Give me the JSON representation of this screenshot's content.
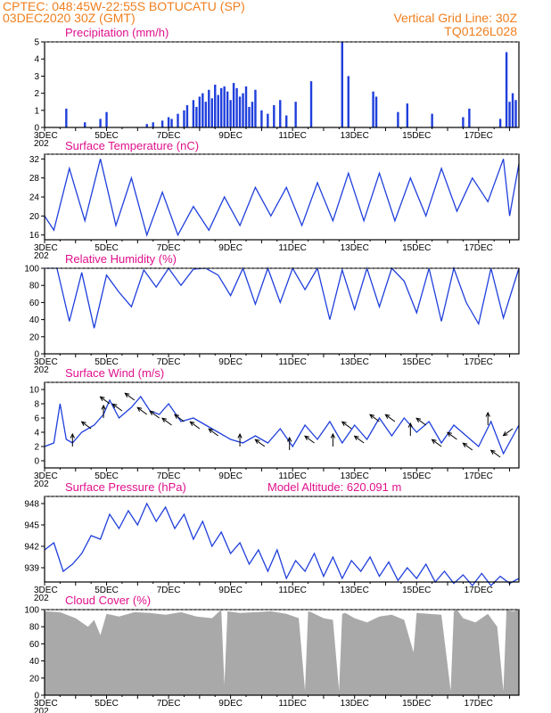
{
  "header": {
    "line1": "CPTEC:   048:45W-22:55S   BOTUCATU (SP)",
    "line2": "03DEC2020 30Z (GMT)",
    "grid_note": "Vertical Grid Line: 30Z",
    "model_code": "TQ0126L028"
  },
  "colors": {
    "header": "#f07f1e",
    "title": "#e0108c",
    "series": "#1f3fdc",
    "cloud": "#a9a9a9",
    "axis": "#000000"
  },
  "x_axis": {
    "start_day": 3,
    "end_day": 18.3,
    "ticks": [
      {
        "day": 3,
        "label": "3DEC"
      },
      {
        "day": 5,
        "label": "5DEC"
      },
      {
        "day": 7,
        "label": "7DEC"
      },
      {
        "day": 9,
        "label": "9DEC"
      },
      {
        "day": 11,
        "label": "11DEC"
      },
      {
        "day": 13,
        "label": "13DEC"
      },
      {
        "day": 15,
        "label": "15DEC"
      },
      {
        "day": 17,
        "label": "17DEC"
      }
    ],
    "year_fragment": "202"
  },
  "chart_data": [
    {
      "id": "precip",
      "type": "bar",
      "title": "Precipitation (mm/h)",
      "ylim": [
        0,
        5
      ],
      "yticks": [
        0,
        1,
        2,
        3,
        4,
        5
      ],
      "x": [
        3.7,
        4.3,
        4.8,
        5.0,
        6.3,
        6.5,
        6.8,
        7.0,
        7.1,
        7.3,
        7.5,
        7.6,
        7.8,
        7.9,
        8.0,
        8.1,
        8.2,
        8.3,
        8.4,
        8.5,
        8.6,
        8.7,
        8.8,
        8.9,
        9.0,
        9.1,
        9.2,
        9.3,
        9.4,
        9.5,
        9.6,
        9.7,
        9.8,
        10.0,
        10.2,
        10.4,
        10.6,
        10.8,
        11.1,
        11.6,
        12.6,
        12.8,
        13.6,
        13.7,
        14.4,
        14.7,
        15.5,
        16.5,
        16.7,
        17.7,
        17.9,
        18.0,
        18.1,
        18.2
      ],
      "values": [
        1.1,
        0.3,
        0.5,
        0.9,
        0.2,
        0.3,
        0.4,
        0.6,
        0.5,
        0.8,
        1.0,
        1.3,
        1.6,
        1.2,
        1.8,
        2.0,
        1.5,
        2.2,
        1.7,
        2.5,
        1.9,
        2.3,
        2.4,
        2.1,
        1.6,
        2.6,
        2.3,
        1.8,
        2.0,
        2.4,
        1.2,
        1.5,
        2.2,
        1.0,
        0.8,
        1.3,
        1.6,
        0.7,
        1.5,
        2.7,
        5.0,
        3.0,
        2.1,
        1.8,
        0.9,
        1.4,
        0.8,
        0.6,
        1.1,
        0.5,
        4.4,
        1.5,
        2.0,
        1.6
      ]
    },
    {
      "id": "temp",
      "type": "line",
      "title": "Surface Temperature (nC)",
      "ylim": [
        15,
        33
      ],
      "yticks": [
        16,
        20,
        24,
        28,
        32
      ],
      "x": [
        3.0,
        3.3,
        3.8,
        4.3,
        4.8,
        5.3,
        5.8,
        6.3,
        6.8,
        7.3,
        7.8,
        8.3,
        8.8,
        9.3,
        9.8,
        10.3,
        10.8,
        11.3,
        11.8,
        12.3,
        12.8,
        13.3,
        13.8,
        14.3,
        14.8,
        15.3,
        15.8,
        16.3,
        16.8,
        17.3,
        17.8,
        18.0,
        18.3
      ],
      "values": [
        20,
        17,
        30,
        19,
        32,
        18,
        28,
        16,
        25,
        16,
        22,
        17,
        24,
        18,
        26,
        20,
        26,
        18,
        27,
        19,
        29,
        19,
        29,
        19,
        28,
        20,
        30,
        21,
        28,
        23,
        32,
        20,
        31
      ]
    },
    {
      "id": "rh",
      "type": "line",
      "title": "Relative Humidity (%)",
      "ylim": [
        0,
        100
      ],
      "yticks": [
        0,
        20,
        40,
        60,
        80,
        100
      ],
      "x": [
        3.0,
        3.4,
        3.8,
        4.2,
        4.6,
        5.0,
        5.4,
        5.8,
        6.2,
        6.6,
        7.0,
        7.4,
        7.8,
        8.2,
        8.6,
        9.0,
        9.4,
        9.8,
        10.2,
        10.6,
        11.0,
        11.4,
        11.8,
        12.2,
        12.6,
        13.0,
        13.4,
        13.8,
        14.2,
        14.6,
        15.0,
        15.4,
        15.8,
        16.2,
        16.6,
        17.0,
        17.4,
        17.8,
        18.3
      ],
      "values": [
        100,
        100,
        38,
        95,
        30,
        92,
        72,
        55,
        98,
        78,
        100,
        80,
        99,
        100,
        92,
        68,
        100,
        58,
        100,
        60,
        100,
        75,
        100,
        40,
        98,
        52,
        100,
        55,
        100,
        85,
        48,
        100,
        38,
        100,
        60,
        35,
        100,
        42,
        100
      ]
    },
    {
      "id": "wind",
      "type": "line",
      "title": "Surface Wind (m/s)",
      "ylim": [
        -1,
        11
      ],
      "yticks": [
        0,
        2,
        4,
        6,
        8,
        10
      ],
      "x": [
        3.0,
        3.3,
        3.5,
        3.7,
        3.9,
        4.2,
        4.6,
        4.9,
        5.1,
        5.4,
        5.8,
        6.1,
        6.4,
        6.7,
        7.0,
        7.4,
        7.8,
        8.2,
        8.6,
        9.0,
        9.4,
        9.8,
        10.2,
        10.6,
        11.0,
        11.4,
        11.8,
        12.2,
        12.6,
        13.0,
        13.4,
        13.8,
        14.2,
        14.6,
        15.0,
        15.4,
        15.8,
        16.2,
        16.6,
        17.0,
        17.4,
        17.8,
        18.3
      ],
      "values": [
        2.0,
        2.5,
        8.0,
        3.0,
        2.5,
        4.0,
        5.0,
        6.5,
        8.5,
        6.0,
        7.5,
        9.0,
        7.0,
        6.5,
        8.0,
        5.5,
        6.0,
        5.0,
        4.0,
        3.0,
        2.5,
        3.5,
        2.5,
        4.5,
        2.0,
        5.0,
        3.0,
        5.5,
        2.5,
        5.0,
        3.0,
        6.0,
        3.5,
        6.0,
        4.0,
        5.5,
        2.5,
        5.0,
        3.5,
        2.0,
        5.5,
        1.0,
        5.0
      ],
      "arrows_x": [
        3.9,
        4.5,
        4.9,
        5.1,
        5.5,
        5.9,
        6.3,
        6.7,
        7.1,
        7.5,
        8.0,
        8.6,
        9.3,
        10.1,
        10.9,
        11.7,
        12.3,
        12.9,
        13.3,
        13.8,
        14.3,
        14.8,
        15.3,
        15.8,
        16.3,
        16.8,
        17.3,
        17.7,
        18.1
      ],
      "arrows_dir": [
        "n",
        "nw",
        "n",
        "nw",
        "nw",
        "nw",
        "nw",
        "nw",
        "nw",
        "nw",
        "nw",
        "nw",
        "n",
        "nw",
        "n",
        "nw",
        "n",
        "nw",
        "nw",
        "nw",
        "nw",
        "n",
        "nw",
        "nw",
        "nw",
        "nw",
        "n",
        "nw",
        "sw"
      ]
    },
    {
      "id": "pressure",
      "type": "line",
      "title": "Surface Pressure (hPa)",
      "annotation": "Model Altitude: 620.091  m",
      "ylim": [
        937,
        949
      ],
      "yticks": [
        939,
        942,
        945,
        948
      ],
      "x": [
        3.0,
        3.3,
        3.6,
        3.9,
        4.2,
        4.5,
        4.8,
        5.1,
        5.4,
        5.7,
        6.0,
        6.3,
        6.6,
        6.9,
        7.2,
        7.5,
        7.8,
        8.1,
        8.4,
        8.7,
        9.0,
        9.3,
        9.6,
        9.9,
        10.2,
        10.5,
        10.8,
        11.1,
        11.4,
        11.7,
        12.0,
        12.3,
        12.6,
        12.9,
        13.2,
        13.5,
        13.8,
        14.1,
        14.4,
        14.7,
        15.0,
        15.3,
        15.6,
        15.9,
        16.2,
        16.5,
        16.8,
        17.1,
        17.4,
        17.7,
        18.0,
        18.3
      ],
      "values": [
        941.5,
        942.5,
        938.5,
        939.5,
        941.0,
        943.5,
        943.0,
        946.5,
        944.5,
        947.0,
        945.0,
        948.0,
        945.5,
        947.5,
        944.5,
        946.5,
        943.0,
        945.5,
        942.0,
        944.0,
        941.0,
        942.5,
        939.5,
        941.5,
        938.5,
        941.5,
        937.5,
        940.0,
        938.5,
        941.0,
        937.8,
        940.5,
        937.5,
        940.0,
        938.5,
        940.5,
        937.8,
        939.8,
        937.2,
        939.0,
        937.5,
        939.5,
        937.0,
        938.5,
        936.8,
        938.0,
        936.5,
        938.2,
        936.5,
        937.8,
        936.8,
        937.5
      ]
    },
    {
      "id": "cloud",
      "type": "area",
      "title": "Cloud Cover (%)",
      "ylim": [
        0,
        100
      ],
      "yticks": [
        0,
        20,
        40,
        60,
        80,
        100
      ],
      "x": [
        3.0,
        3.5,
        4.0,
        4.4,
        4.6,
        4.8,
        5.0,
        5.4,
        5.9,
        6.4,
        6.9,
        7.4,
        7.9,
        8.4,
        8.7,
        8.8,
        8.9,
        9.3,
        9.8,
        10.3,
        10.8,
        11.2,
        11.4,
        11.5,
        11.6,
        12.0,
        12.3,
        12.5,
        12.6,
        12.7,
        13.0,
        13.4,
        13.8,
        14.2,
        14.6,
        14.9,
        15.0,
        15.4,
        15.8,
        16.1,
        16.2,
        16.3,
        16.5,
        16.9,
        17.3,
        17.6,
        17.8,
        17.9,
        18.1,
        18.3
      ],
      "values": [
        98,
        97,
        90,
        80,
        88,
        70,
        95,
        92,
        97,
        96,
        94,
        97,
        92,
        90,
        100,
        12,
        98,
        96,
        97,
        98,
        95,
        90,
        5,
        98,
        97,
        90,
        88,
        5,
        95,
        96,
        90,
        85,
        92,
        94,
        88,
        50,
        96,
        95,
        94,
        5,
        98,
        100,
        90,
        85,
        95,
        80,
        5,
        100,
        98,
        100
      ]
    }
  ]
}
